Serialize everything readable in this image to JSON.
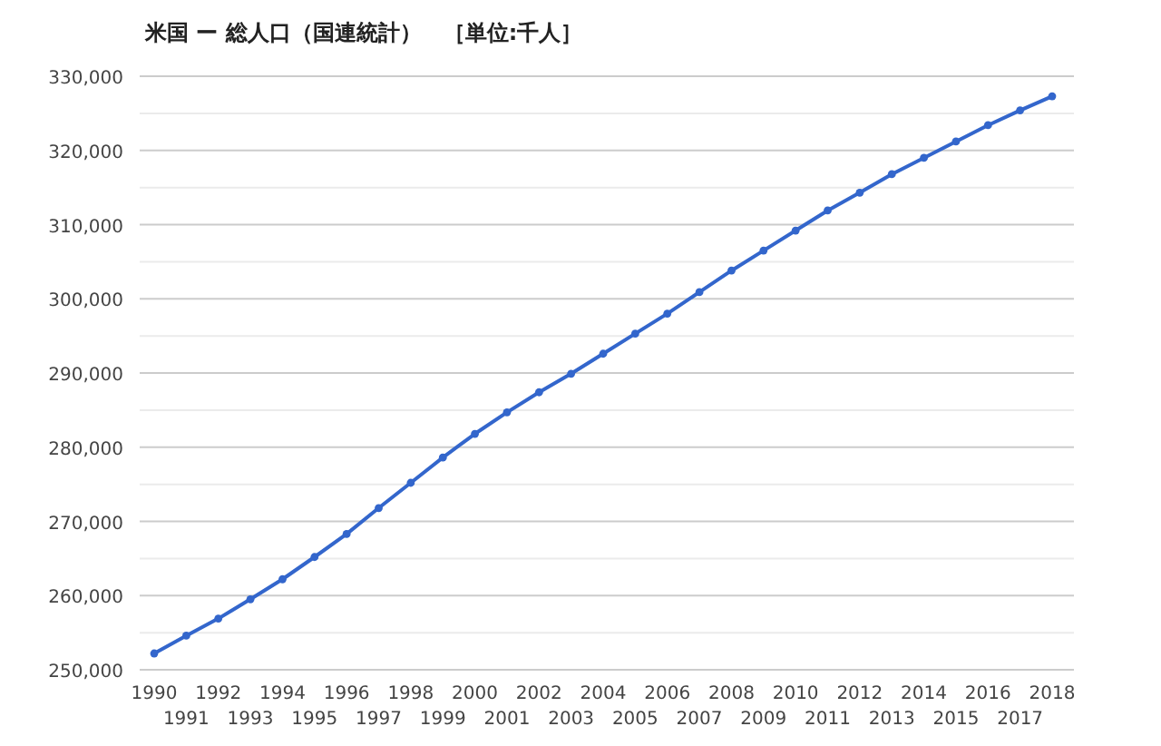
{
  "chart_data": {
    "type": "line",
    "title": "米国 ー 総人口（国連統計）　［単位:千人］",
    "categories": [
      "1990",
      "1991",
      "1992",
      "1993",
      "1994",
      "1995",
      "1996",
      "1997",
      "1998",
      "1999",
      "2000",
      "2001",
      "2002",
      "2003",
      "2004",
      "2005",
      "2006",
      "2007",
      "2008",
      "2009",
      "2010",
      "2011",
      "2012",
      "2013",
      "2014",
      "2015",
      "2016",
      "2017",
      "2018"
    ],
    "series": [
      {
        "color": "#3366cc",
        "values": [
          252200,
          254600,
          256900,
          259500,
          262200,
          265200,
          268300,
          271800,
          275200,
          278600,
          281800,
          284700,
          287400,
          289900,
          292600,
          295300,
          298000,
          300900,
          303800,
          306500,
          309200,
          311900,
          314300,
          316800,
          319000,
          321200,
          323400,
          325400,
          327300
        ]
      }
    ],
    "ylim": [
      250000,
      330000
    ],
    "yticks": [
      {
        "value": 250000,
        "label": "250,000"
      },
      {
        "value": 255000,
        "label": null
      },
      {
        "value": 260000,
        "label": "260,000"
      },
      {
        "value": 265000,
        "label": null
      },
      {
        "value": 270000,
        "label": "270,000"
      },
      {
        "value": 275000,
        "label": null
      },
      {
        "value": 280000,
        "label": "280,000"
      },
      {
        "value": 285000,
        "label": null
      },
      {
        "value": 290000,
        "label": "290,000"
      },
      {
        "value": 295000,
        "label": null
      },
      {
        "value": 300000,
        "label": "300,000"
      },
      {
        "value": 305000,
        "label": null
      },
      {
        "value": 310000,
        "label": "310,000"
      },
      {
        "value": 315000,
        "label": null
      },
      {
        "value": 320000,
        "label": "320,000"
      },
      {
        "value": 325000,
        "label": null
      },
      {
        "value": 330000,
        "label": "330,000"
      }
    ],
    "grid": true,
    "marker": "circle",
    "line_style": "solid"
  }
}
